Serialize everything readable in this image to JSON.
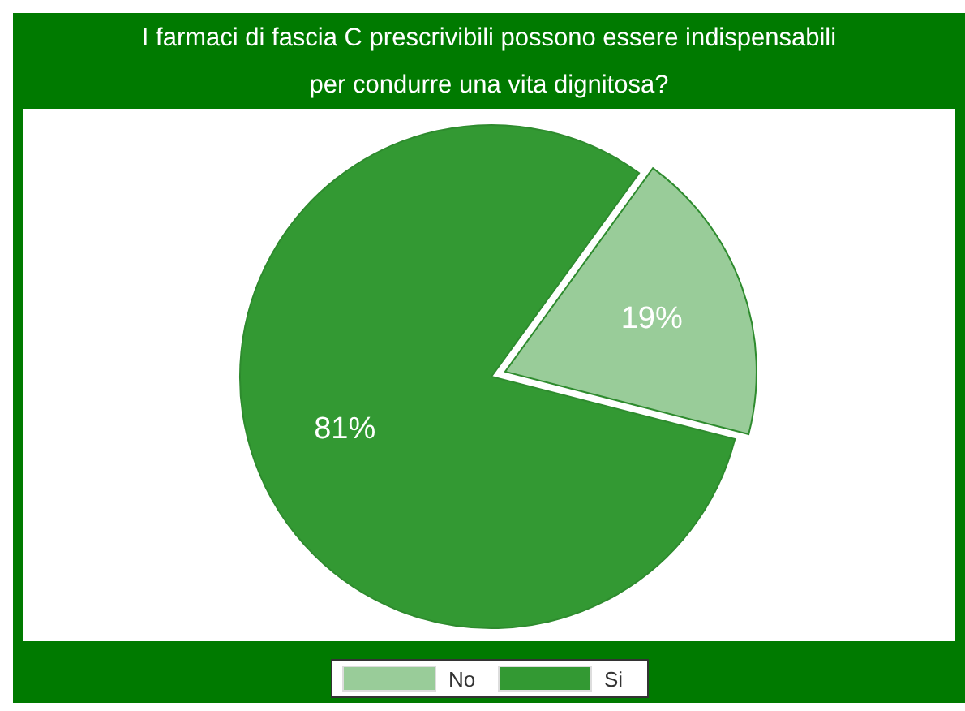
{
  "chart_data": {
    "type": "pie",
    "title": "I farmaci di fascia C prescrivibili possono essere indispensabili\nper condurre una vita dignitosa?",
    "categories": [
      "No",
      "Si"
    ],
    "values": [
      19,
      81
    ],
    "value_labels": [
      "19%",
      "81%"
    ],
    "colors": [
      "#99cc99",
      "#339933"
    ],
    "legend": "bottom"
  }
}
